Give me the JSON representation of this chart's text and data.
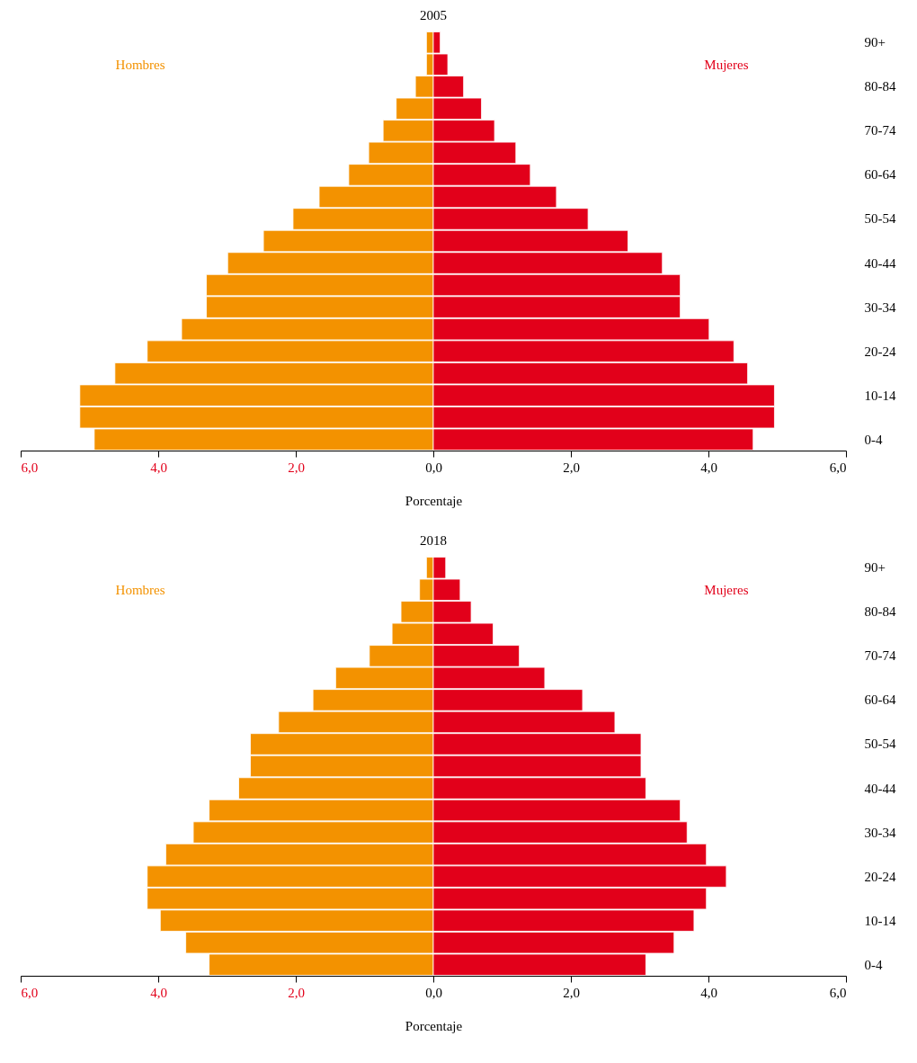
{
  "chart_data": [
    {
      "type": "bar",
      "orientation": "horizontal",
      "stacked": true,
      "title": "2005",
      "xlabel": "Porcentaje",
      "categories": [
        "90+",
        null,
        "80-84",
        null,
        "70-74",
        null,
        "60-64",
        null,
        "50-54",
        null,
        "40-44",
        null,
        "30-34",
        null,
        "20-24",
        null,
        "10-14",
        null,
        "0-4"
      ],
      "xlim": [
        -6,
        6
      ],
      "xticks": [
        {
          "value": -6,
          "label": "6,0"
        },
        {
          "value": -4,
          "label": "4,0"
        },
        {
          "value": -2,
          "label": "2,0"
        },
        {
          "value": 0,
          "label": "0,0"
        },
        {
          "value": 2,
          "label": "2,0"
        },
        {
          "value": 4,
          "label": "4,0"
        },
        {
          "value": 6,
          "label": "6,0"
        }
      ],
      "series": [
        {
          "name": "Hombres",
          "color": "#f39200",
          "values": [
            -0.1,
            -0.1,
            -0.26,
            -0.54,
            -0.73,
            -0.94,
            -1.23,
            -1.66,
            -2.04,
            -2.47,
            -2.99,
            -3.3,
            -3.3,
            -3.66,
            -4.16,
            -4.63,
            -5.14,
            -5.14,
            -4.93
          ]
        },
        {
          "name": "Mujeres",
          "color": "#e2001a",
          "values": [
            0.1,
            0.21,
            0.44,
            0.7,
            0.89,
            1.2,
            1.41,
            1.79,
            2.25,
            2.83,
            3.33,
            3.59,
            3.59,
            4.01,
            4.37,
            4.57,
            4.96,
            4.96,
            4.65
          ]
        }
      ]
    },
    {
      "type": "bar",
      "orientation": "horizontal",
      "stacked": true,
      "title": "2018",
      "xlabel": "Porcentaje",
      "categories": [
        "90+",
        null,
        "80-84",
        null,
        "70-74",
        null,
        "60-64",
        null,
        "50-54",
        null,
        "40-44",
        null,
        "30-34",
        null,
        "20-24",
        null,
        "10-14",
        null,
        "0-4"
      ],
      "xlim": [
        -6,
        6
      ],
      "xticks": [
        {
          "value": -6,
          "label": "6,0"
        },
        {
          "value": -4,
          "label": "4,0"
        },
        {
          "value": -2,
          "label": "2,0"
        },
        {
          "value": 0,
          "label": "0,0"
        },
        {
          "value": 2,
          "label": "2,0"
        },
        {
          "value": 4,
          "label": "4,0"
        },
        {
          "value": 6,
          "label": "6,0"
        }
      ],
      "series": [
        {
          "name": "Hombres",
          "color": "#f39200",
          "values": [
            -0.1,
            -0.2,
            -0.47,
            -0.6,
            -0.93,
            -1.42,
            -1.75,
            -2.25,
            -2.66,
            -2.66,
            -2.83,
            -3.26,
            -3.49,
            -3.89,
            -4.16,
            -4.16,
            -3.97,
            -3.6,
            -3.26
          ]
        },
        {
          "name": "Mujeres",
          "color": "#e2001a",
          "values": [
            0.18,
            0.39,
            0.55,
            0.87,
            1.25,
            1.62,
            2.17,
            2.64,
            3.02,
            3.02,
            3.09,
            3.59,
            3.69,
            3.97,
            4.26,
            3.97,
            3.79,
            3.5,
            3.09
          ]
        }
      ]
    }
  ]
}
